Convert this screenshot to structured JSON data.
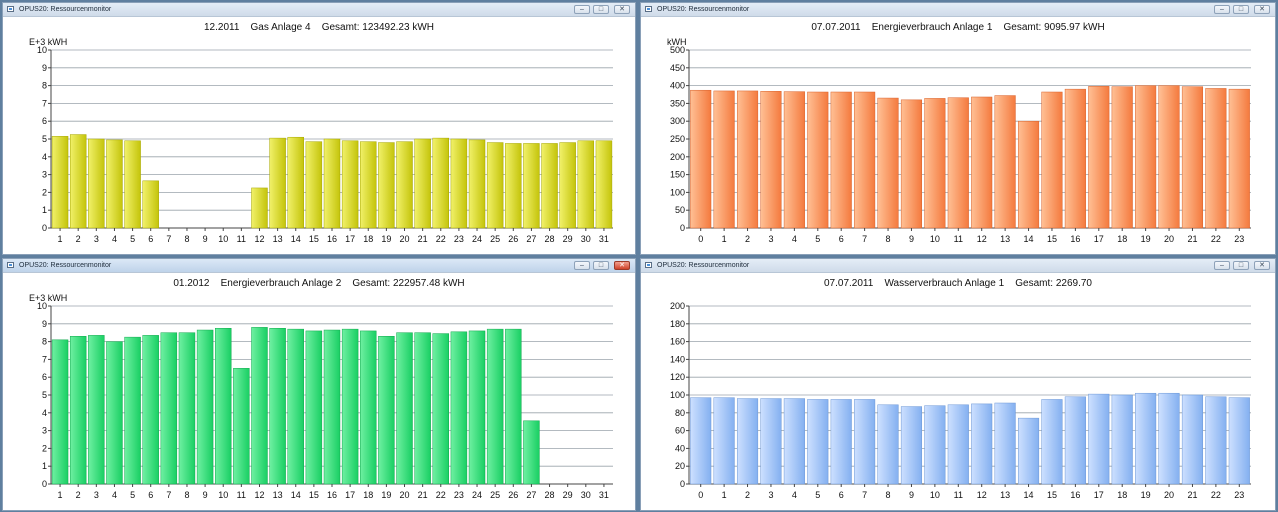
{
  "windows": [
    {
      "title": "OPUS20: Ressourcenmonitor",
      "header": {
        "period": "12.2011",
        "label": "Gas Anlage 4",
        "total": "Gesamt: 123492.23 kWH"
      },
      "active": false,
      "colors": {
        "light": "#f1f16a",
        "dark": "#c4c40a",
        "edge": "#a6a600"
      },
      "chart_data": {
        "type": "bar",
        "ylabel": "E+3 kWH",
        "ylim": [
          0,
          10
        ],
        "yticks": [
          "0",
          "1",
          "2",
          "3",
          "4",
          "5",
          "6",
          "7",
          "8",
          "9",
          "10"
        ],
        "categories": [
          "1",
          "2",
          "3",
          "4",
          "5",
          "6",
          "7",
          "8",
          "9",
          "10",
          "11",
          "12",
          "13",
          "14",
          "15",
          "16",
          "17",
          "18",
          "19",
          "20",
          "21",
          "22",
          "23",
          "24",
          "25",
          "26",
          "27",
          "28",
          "29",
          "30",
          "31"
        ],
        "values": [
          5.15,
          5.25,
          5.0,
          4.95,
          4.9,
          2.65,
          0,
          0,
          0,
          0,
          0,
          2.25,
          5.05,
          5.1,
          4.85,
          5.0,
          4.9,
          4.85,
          4.8,
          4.85,
          5.0,
          5.05,
          5.0,
          4.95,
          4.8,
          4.75,
          4.75,
          4.75,
          4.8,
          4.9,
          4.9
        ]
      }
    },
    {
      "title": "OPUS20: Ressourcenmonitor",
      "header": {
        "period": "07.07.2011",
        "label": "Energieverbrauch Anlage 1",
        "total": "Gesamt: 9095.97 kWH"
      },
      "active": false,
      "colors": {
        "light": "#ffc095",
        "dark": "#f47a3e",
        "edge": "#d8612a"
      },
      "chart_data": {
        "type": "bar",
        "ylabel": "kWH",
        "ylim": [
          0,
          500
        ],
        "yticks": [
          "0",
          "50",
          "100",
          "150",
          "200",
          "250",
          "300",
          "350",
          "400",
          "450",
          "500"
        ],
        "categories": [
          "0",
          "1",
          "2",
          "3",
          "4",
          "5",
          "6",
          "7",
          "8",
          "9",
          "10",
          "11",
          "12",
          "13",
          "14",
          "15",
          "16",
          "17",
          "18",
          "19",
          "20",
          "21",
          "22",
          "23"
        ],
        "values": [
          387,
          385,
          385,
          384,
          383,
          382,
          382,
          382,
          365,
          360,
          364,
          366,
          368,
          372,
          300,
          382,
          390,
          398,
          397,
          400,
          400,
          397,
          392,
          390
        ]
      }
    },
    {
      "title": "OPUS20: Ressourcenmonitor",
      "header": {
        "period": "01.2012",
        "label": "Energieverbrauch Anlage 2",
        "total": "Gesamt: 222957.48 kWH"
      },
      "active": true,
      "colors": {
        "light": "#6ff0a2",
        "dark": "#19cf63",
        "edge": "#12a84e"
      },
      "chart_data": {
        "type": "bar",
        "ylabel": "E+3 kWH",
        "ylim": [
          0,
          10
        ],
        "yticks": [
          "0",
          "1",
          "2",
          "3",
          "4",
          "5",
          "6",
          "7",
          "8",
          "9",
          "10"
        ],
        "categories": [
          "1",
          "2",
          "3",
          "4",
          "5",
          "6",
          "7",
          "8",
          "9",
          "10",
          "11",
          "12",
          "13",
          "14",
          "15",
          "16",
          "17",
          "18",
          "19",
          "20",
          "21",
          "22",
          "23",
          "24",
          "25",
          "26",
          "27",
          "28",
          "29",
          "30",
          "31"
        ],
        "values": [
          8.1,
          8.3,
          8.35,
          8.0,
          8.25,
          8.35,
          8.5,
          8.5,
          8.65,
          8.75,
          6.5,
          8.8,
          8.75,
          8.7,
          8.6,
          8.65,
          8.7,
          8.6,
          8.3,
          8.5,
          8.5,
          8.45,
          8.55,
          8.6,
          8.7,
          8.7,
          3.55,
          0,
          0,
          0,
          0
        ]
      }
    },
    {
      "title": "OPUS20: Ressourcenmonitor",
      "header": {
        "period": "07.07.2011",
        "label": "Wasserverbrauch Anlage 1",
        "total": "Gesamt: 2269.70"
      },
      "active": false,
      "colors": {
        "light": "#cde0ff",
        "dark": "#84b0f0",
        "edge": "#6b96d6"
      },
      "chart_data": {
        "type": "bar",
        "ylabel": "",
        "ylim": [
          0,
          200
        ],
        "yticks": [
          "0",
          "20",
          "40",
          "60",
          "80",
          "100",
          "120",
          "140",
          "160",
          "180",
          "200"
        ],
        "categories": [
          "0",
          "1",
          "2",
          "3",
          "4",
          "5",
          "6",
          "7",
          "8",
          "9",
          "10",
          "11",
          "12",
          "13",
          "14",
          "15",
          "16",
          "17",
          "18",
          "19",
          "20",
          "21",
          "22",
          "23"
        ],
        "values": [
          97,
          97,
          96,
          96,
          96,
          95,
          95,
          95,
          89,
          87,
          88,
          89,
          90,
          91,
          74,
          95,
          98,
          101,
          100,
          102,
          102,
          100,
          98,
          97
        ]
      }
    }
  ],
  "window_controls": {
    "minimize": "–",
    "maximize": "□",
    "close": "✕"
  }
}
